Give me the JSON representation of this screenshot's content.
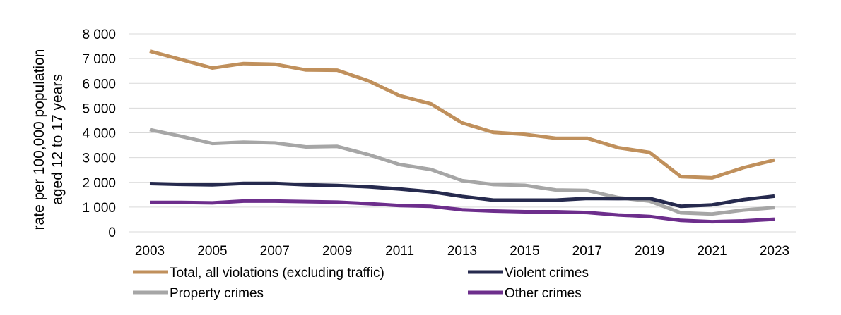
{
  "chart_data": {
    "type": "line",
    "title": "",
    "xlabel": "",
    "ylabel": [
      "rate per 100,000 population",
      "aged 12 to 17 years"
    ],
    "x": [
      2003,
      2004,
      2005,
      2006,
      2007,
      2008,
      2009,
      2010,
      2011,
      2012,
      2013,
      2014,
      2015,
      2016,
      2017,
      2018,
      2019,
      2020,
      2021,
      2022,
      2023
    ],
    "x_tick_labels": [
      "2003",
      "2005",
      "2007",
      "2009",
      "2011",
      "2013",
      "2015",
      "2017",
      "2019",
      "2021",
      "2023"
    ],
    "y_tick_labels": [
      "0",
      "1 000",
      "2 000",
      "3 000",
      "4 000",
      "5 000",
      "6 000",
      "7 000",
      "8 000"
    ],
    "y_ticks": [
      0,
      1000,
      2000,
      3000,
      4000,
      5000,
      6000,
      7000,
      8000
    ],
    "ylim": [
      0,
      8000
    ],
    "grid": "horizontal",
    "legend_position": "bottom",
    "series": [
      {
        "name": "Total, all violations  (excluding traffic)",
        "color": "#c0905c",
        "values": [
          7300,
          6960,
          6620,
          6800,
          6770,
          6540,
          6530,
          6100,
          5500,
          5170,
          4400,
          4020,
          3940,
          3780,
          3780,
          3400,
          3210,
          2230,
          2180,
          2590,
          2900
        ]
      },
      {
        "name": "Violent crimes",
        "color": "#262a4e",
        "values": [
          1950,
          1920,
          1900,
          1960,
          1960,
          1900,
          1870,
          1820,
          1730,
          1620,
          1430,
          1280,
          1280,
          1280,
          1350,
          1340,
          1350,
          1030,
          1090,
          1300,
          1440
        ]
      },
      {
        "name": "Property crimes",
        "color": "#a6a6a6",
        "values": [
          4130,
          3860,
          3570,
          3620,
          3590,
          3430,
          3450,
          3120,
          2720,
          2520,
          2070,
          1910,
          1880,
          1690,
          1670,
          1380,
          1240,
          770,
          720,
          880,
          980
        ]
      },
      {
        "name": "Other crimes",
        "color": "#6d2e8c",
        "values": [
          1190,
          1190,
          1170,
          1240,
          1240,
          1220,
          1200,
          1140,
          1060,
          1030,
          890,
          840,
          810,
          810,
          780,
          680,
          620,
          460,
          410,
          440,
          510
        ]
      }
    ]
  }
}
